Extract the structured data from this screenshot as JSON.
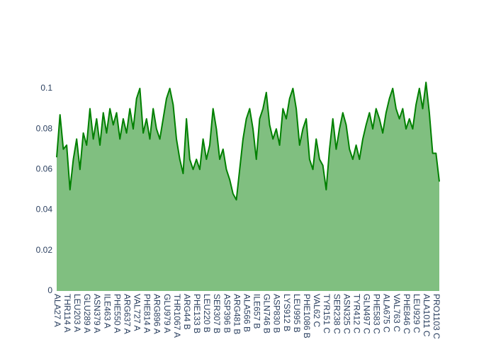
{
  "chart_data": {
    "type": "area",
    "categories": [
      "ALA27 A",
      null,
      null,
      "THR114 A",
      null,
      null,
      "LEU203 A",
      null,
      null,
      "GLU289 A",
      null,
      null,
      "ASN379 A",
      null,
      null,
      "ILE463 A",
      null,
      null,
      "PHE550 A",
      null,
      null,
      "ARG637 A",
      null,
      null,
      "VAL727 A",
      null,
      null,
      "PHE814 A",
      null,
      null,
      "ARG896 A",
      null,
      null,
      "GLU979 A",
      null,
      null,
      "THR1067 A",
      null,
      null,
      "ARG44 B",
      null,
      null,
      "PHE133 B",
      null,
      null,
      "LEU220 B",
      null,
      null,
      "SER307 B",
      null,
      null,
      "ASP396 B",
      null,
      null,
      "ARG481 B",
      null,
      null,
      "ALA566 B",
      null,
      null,
      "ILE657 B",
      null,
      null,
      "GLN746 B",
      null,
      null,
      "ASP830 B",
      null,
      null,
      "LYS912 B",
      null,
      null,
      "LEU995 B",
      null,
      null,
      "PHE1086 B",
      null,
      null,
      "VAL62 C",
      null,
      null,
      "TYR151 C",
      null,
      null,
      "SER238 C",
      null,
      null,
      "ASN325 C",
      null,
      null,
      "TYR412 C",
      null,
      null,
      "GLN497 C",
      null,
      null,
      "PHE583 C",
      null,
      null,
      "ALA675 C",
      null,
      null,
      "VAL763 C",
      null,
      null,
      "PHE846 C",
      null,
      null,
      "LEU929 C",
      null,
      null,
      "ALA1011 C",
      null,
      null,
      "PRO1103 C",
      null
    ],
    "values": [
      0.066,
      0.087,
      0.07,
      0.072,
      0.05,
      0.065,
      0.075,
      0.06,
      0.078,
      0.072,
      0.09,
      0.075,
      0.085,
      0.072,
      0.088,
      0.078,
      0.09,
      0.082,
      0.088,
      0.075,
      0.085,
      0.078,
      0.09,
      0.08,
      0.095,
      0.1,
      0.078,
      0.085,
      0.075,
      0.09,
      0.08,
      0.075,
      0.085,
      0.095,
      0.1,
      0.092,
      0.075,
      0.065,
      0.058,
      0.085,
      0.065,
      0.06,
      0.065,
      0.06,
      0.075,
      0.065,
      0.072,
      0.09,
      0.08,
      0.065,
      0.07,
      0.06,
      0.055,
      0.048,
      0.045,
      0.06,
      0.075,
      0.085,
      0.09,
      0.08,
      0.065,
      0.085,
      0.09,
      0.098,
      0.082,
      0.075,
      0.08,
      0.072,
      0.09,
      0.085,
      0.095,
      0.1,
      0.09,
      0.072,
      0.08,
      0.085,
      0.065,
      0.06,
      0.075,
      0.065,
      0.062,
      0.05,
      0.07,
      0.085,
      0.07,
      0.08,
      0.088,
      0.082,
      0.07,
      0.065,
      0.072,
      0.065,
      0.075,
      0.082,
      0.088,
      0.08,
      0.09,
      0.085,
      0.078,
      0.088,
      0.095,
      0.1,
      0.09,
      0.085,
      0.09,
      0.08,
      0.085,
      0.08,
      0.092,
      0.1,
      0.09,
      0.103,
      0.088,
      0.068,
      0.068,
      0.054
    ],
    "color": "#008000",
    "fill_color": "#80bf80",
    "ylim": [
      0,
      0.1087
    ],
    "yticks": [
      0,
      0.02,
      0.04,
      0.06,
      0.08,
      0.1
    ]
  }
}
